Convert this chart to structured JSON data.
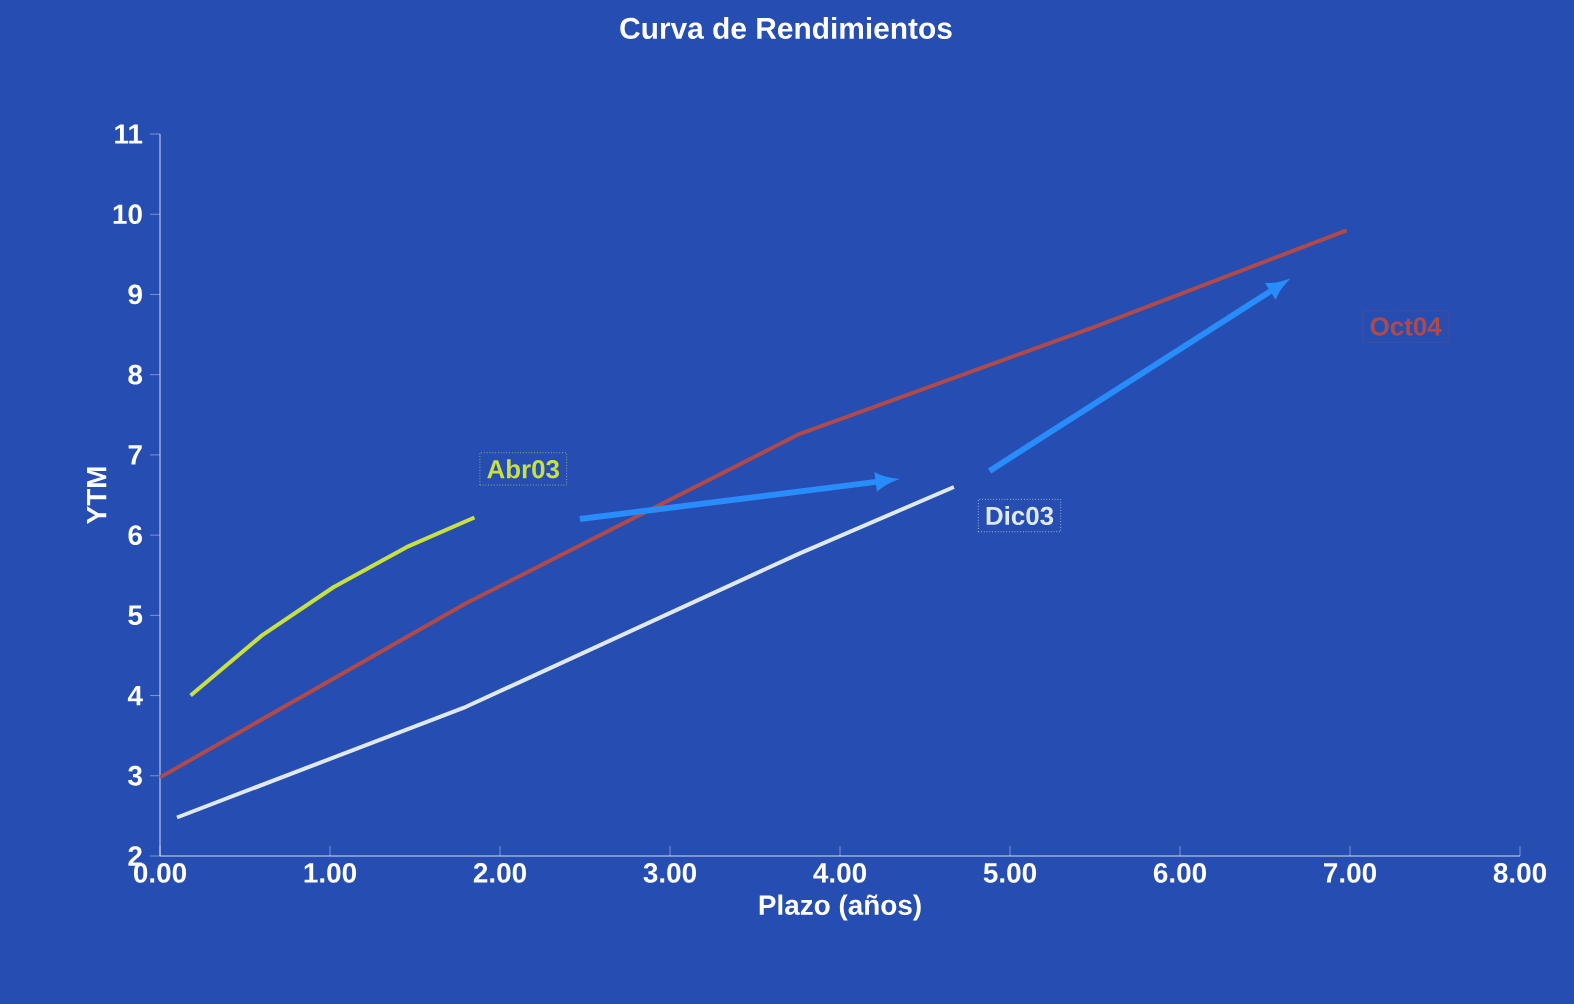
{
  "chart_data": {
    "type": "line",
    "title": "Curva de Rendimientos",
    "xlabel": "Plazo (años)",
    "ylabel": "YTM",
    "xlim": [
      0,
      8
    ],
    "ylim": [
      2,
      11
    ],
    "xticks": [
      {
        "value": 0,
        "label": "0.00"
      },
      {
        "value": 1,
        "label": "1.00"
      },
      {
        "value": 2,
        "label": "2.00"
      },
      {
        "value": 3,
        "label": "3.00"
      },
      {
        "value": 4,
        "label": "4.00"
      },
      {
        "value": 5,
        "label": "5.00"
      },
      {
        "value": 6,
        "label": "6.00"
      },
      {
        "value": 7,
        "label": "7.00"
      },
      {
        "value": 8,
        "label": "8.00"
      }
    ],
    "yticks": [
      2,
      3,
      4,
      5,
      6,
      7,
      8,
      9,
      10,
      11
    ],
    "grid": false,
    "legend": false,
    "marker": "none",
    "line_style": "solid",
    "series": [
      {
        "name": "Abr03",
        "color": "#c8e040",
        "x": [
          0.18,
          0.6,
          1.02,
          1.45,
          1.85
        ],
        "values": [
          4.0,
          4.75,
          5.35,
          5.85,
          6.22
        ]
      },
      {
        "name": "Dic03",
        "color": "#e0e8f0",
        "x": [
          0.1,
          1.8,
          3.76,
          4.67
        ],
        "values": [
          2.48,
          3.86,
          5.77,
          6.6
        ]
      },
      {
        "name": "Oct04",
        "color": "#b04a4a",
        "x": [
          0,
          1.8,
          3.76,
          5.49,
          6.98
        ],
        "values": [
          2.98,
          5.15,
          7.26,
          8.59,
          9.8
        ]
      }
    ]
  }
}
